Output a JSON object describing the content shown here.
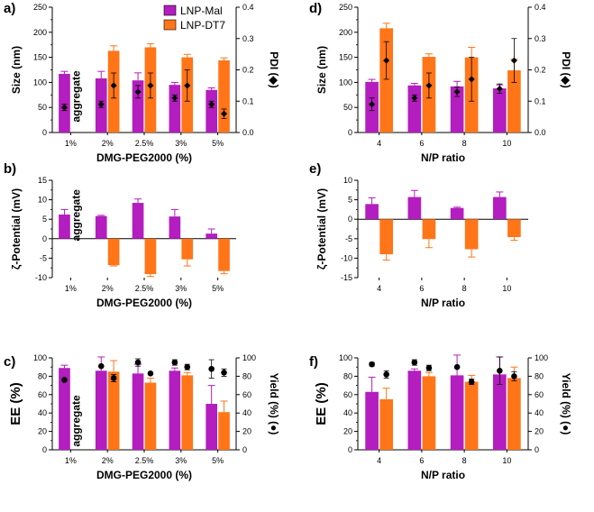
{
  "colors": {
    "mal": "#b41dbf",
    "dt7": "#ff7518",
    "marker": "#000000"
  },
  "legend": [
    {
      "label": "LNP-Mal",
      "series": "mal"
    },
    {
      "label": "LNP-DT7",
      "series": "dt7"
    }
  ],
  "chart_data": [
    {
      "panel": "a)",
      "type": "bar",
      "categories": [
        "1%",
        "2%",
        "2.5%",
        "3%",
        "5%"
      ],
      "xlabel": "DMG-PEG2000 (%)",
      "ylabel": "Size  (nm)",
      "ylabel2": "PDI (◆)",
      "ylim": [
        0,
        250
      ],
      "yticks": [
        0,
        50,
        100,
        150,
        200,
        250
      ],
      "y2lim": [
        0,
        0.4
      ],
      "y2ticks": [
        "0.0",
        "0.1",
        "0.2",
        "0.3",
        "0.4"
      ],
      "series": [
        {
          "key": "mal",
          "name": "LNP-Mal",
          "values": [
            117,
            108,
            104,
            95,
            85
          ],
          "err": [
            5,
            14,
            15,
            5,
            4
          ]
        },
        {
          "key": "dt7",
          "name": "LNP-DT7",
          "values": [
            null,
            163,
            170,
            150,
            144
          ],
          "err": [
            null,
            10,
            7,
            6,
            5
          ]
        }
      ],
      "markers": {
        "symbol": "diamond",
        "axis": "right",
        "mal": {
          "values": [
            0.08,
            0.09,
            0.13,
            0.11,
            0.09
          ],
          "err": [
            0.01,
            0.01,
            0.02,
            0.01,
            0.01
          ]
        },
        "dt7": {
          "values": [
            null,
            0.15,
            0.15,
            0.15,
            0.06
          ],
          "err": [
            null,
            0.04,
            0.04,
            0.05,
            0.015
          ]
        }
      },
      "annotation": "aggregate",
      "annotation_category": "1%"
    },
    {
      "panel": "b)",
      "type": "bar",
      "categories": [
        "1%",
        "2%",
        "2.5%",
        "3%",
        "5%"
      ],
      "xlabel": "DMG-PEG2000 (%)",
      "ylabel": "ζ-Potential (mV)",
      "ylim": [
        -10,
        15
      ],
      "yticks": [
        -10,
        -5,
        0,
        5,
        10,
        15
      ],
      "series": [
        {
          "key": "mal",
          "name": "LNP-Mal",
          "values": [
            6.2,
            5.8,
            9.2,
            5.7,
            1.3
          ],
          "err": [
            1.3,
            0.2,
            1.0,
            1.8,
            1.2
          ]
        },
        {
          "key": "dt7",
          "name": "LNP-DT7",
          "values": [
            null,
            -6.8,
            -9.1,
            -5.3,
            -8.3
          ],
          "err": [
            null,
            0.2,
            0.6,
            1.7,
            0.7
          ]
        }
      ],
      "annotation": "aggregate",
      "annotation_category": "1%"
    },
    {
      "panel": "c)",
      "type": "bar",
      "categories": [
        "1%",
        "2%",
        "2.5%",
        "3%",
        "5%"
      ],
      "xlabel": "DMG-PEG2000 (%)",
      "ylabel": "EE (%)",
      "ylabel2": "Yield (%) (●)",
      "ylim": [
        0,
        100
      ],
      "yticks": [
        0,
        20,
        40,
        60,
        80,
        100
      ],
      "y2lim": [
        0,
        100
      ],
      "y2ticks": [
        "0",
        "20",
        "40",
        "60",
        "80",
        "100"
      ],
      "series": [
        {
          "key": "mal",
          "name": "LNP-Mal",
          "values": [
            89,
            86,
            83,
            86,
            50
          ],
          "err": [
            3,
            15,
            10,
            3,
            20
          ]
        },
        {
          "key": "dt7",
          "name": "LNP-DT7",
          "values": [
            null,
            85,
            73,
            81,
            41
          ],
          "err": [
            null,
            12,
            5,
            3,
            12
          ]
        }
      ],
      "markers": {
        "symbol": "circle",
        "axis": "right",
        "mal": {
          "values": [
            76,
            91,
            95,
            95,
            88
          ],
          "err": [
            0,
            0,
            4,
            3,
            10
          ]
        },
        "dt7": {
          "values": [
            null,
            78,
            83,
            90,
            84
          ],
          "err": [
            null,
            4,
            0,
            3,
            4
          ]
        }
      },
      "annotation": "aggregate",
      "annotation_category": "1%"
    },
    {
      "panel": "d)",
      "type": "bar",
      "categories": [
        "4",
        "6",
        "8",
        "10"
      ],
      "xlabel": "N/P ratio",
      "ylabel": "Size  (nm)",
      "ylabel2": "PDI (◆)",
      "ylim": [
        0,
        250
      ],
      "yticks": [
        0,
        50,
        100,
        150,
        200,
        250
      ],
      "y2lim": [
        0,
        0.4
      ],
      "y2ticks": [
        "0.0",
        "0.1",
        "0.2",
        "0.3",
        "0.4"
      ],
      "series": [
        {
          "key": "mal",
          "name": "LNP-Mal",
          "values": [
            101,
            94,
            92,
            88
          ],
          "err": [
            5,
            4,
            10,
            7
          ]
        },
        {
          "key": "dt7",
          "name": "LNP-DT7",
          "values": [
            208,
            151,
            150,
            124
          ],
          "err": [
            10,
            6,
            20,
            22
          ]
        }
      ],
      "markers": {
        "symbol": "diamond",
        "axis": "right",
        "mal": {
          "values": [
            0.09,
            0.11,
            0.13,
            0.14
          ],
          "err": [
            0.02,
            0.01,
            0.015,
            0.015
          ]
        },
        "dt7": {
          "values": [
            0.23,
            0.15,
            0.17,
            0.23
          ],
          "err": [
            0.06,
            0.04,
            0.07,
            0.07
          ]
        }
      }
    },
    {
      "panel": "e)",
      "type": "bar",
      "categories": [
        "4",
        "6",
        "8",
        "10"
      ],
      "xlabel": "N/P ratio",
      "ylabel": "ζ-Potential (mV)",
      "ylim": [
        -15,
        10
      ],
      "yticks": [
        -15,
        -10,
        -5,
        0,
        5,
        10
      ],
      "series": [
        {
          "key": "mal",
          "name": "LNP-Mal",
          "values": [
            3.9,
            5.7,
            2.9,
            5.7
          ],
          "err": [
            1.6,
            1.7,
            0.2,
            1.3
          ]
        },
        {
          "key": "dt7",
          "name": "LNP-DT7",
          "values": [
            -9.0,
            -5.1,
            -7.7,
            -4.6
          ],
          "err": [
            1.5,
            2.2,
            2.0,
            0.8
          ]
        }
      ]
    },
    {
      "panel": "f)",
      "type": "bar",
      "categories": [
        "4",
        "6",
        "8",
        "10"
      ],
      "xlabel": "N/P ratio",
      "ylabel": "EE (%)",
      "ylabel2": "Yield (%) (●)",
      "ylim": [
        0,
        100
      ],
      "yticks": [
        0,
        20,
        40,
        60,
        80,
        100
      ],
      "y2lim": [
        0,
        100
      ],
      "y2ticks": [
        "0",
        "20",
        "40",
        "60",
        "80",
        "100"
      ],
      "series": [
        {
          "key": "mal",
          "name": "LNP-Mal",
          "values": [
            63,
            86,
            81,
            82
          ],
          "err": [
            16,
            2,
            22,
            19
          ]
        },
        {
          "key": "dt7",
          "name": "LNP-DT7",
          "values": [
            55,
            80,
            74,
            78
          ],
          "err": [
            12,
            4,
            7,
            12
          ]
        }
      ],
      "markers": {
        "symbol": "circle",
        "axis": "right",
        "mal": {
          "values": [
            93,
            95,
            90,
            86
          ],
          "err": [
            2,
            3,
            0,
            15
          ]
        },
        "dt7": {
          "values": [
            82,
            89,
            74,
            80
          ],
          "err": [
            4,
            3,
            3,
            5
          ]
        }
      }
    }
  ]
}
